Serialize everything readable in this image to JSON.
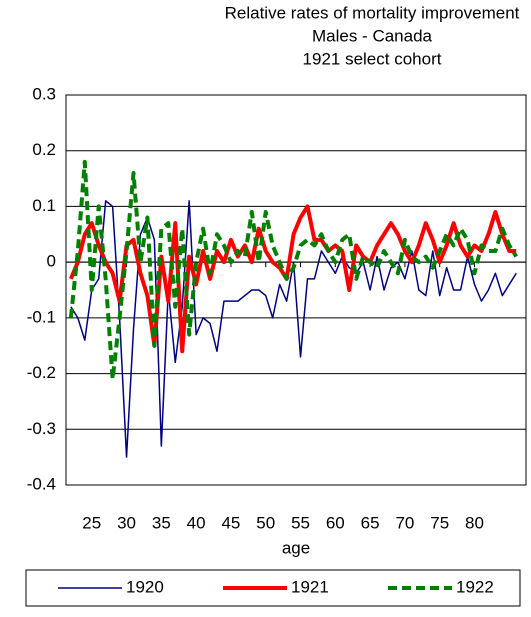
{
  "chart_data": {
    "type": "line",
    "title": [
      "Relative rates of mortality improvement",
      "Males - Canada",
      "1921 select cohort"
    ],
    "x_label": "age",
    "x": [
      22,
      23,
      24,
      25,
      26,
      27,
      28,
      29,
      30,
      31,
      32,
      33,
      34,
      35,
      36,
      37,
      38,
      39,
      40,
      41,
      42,
      43,
      44,
      45,
      46,
      47,
      48,
      49,
      50,
      51,
      52,
      53,
      54,
      55,
      56,
      57,
      58,
      59,
      60,
      61,
      62,
      63,
      64,
      65,
      66,
      67,
      68,
      69,
      70,
      71,
      72,
      73,
      74,
      75,
      76,
      77,
      78,
      79,
      80,
      81,
      82,
      83,
      84,
      85,
      86
    ],
    "xlim": [
      21.3,
      87.4
    ],
    "xticks": [
      25,
      30,
      35,
      40,
      45,
      50,
      55,
      60,
      65,
      70,
      75,
      80
    ],
    "ylim": [
      -0.4,
      0.3
    ],
    "yticks": [
      0.3,
      0.2,
      0.1,
      0,
      -0.1,
      -0.2,
      -0.3,
      -0.4
    ],
    "grid": true,
    "legend": "bottom",
    "series": [
      {
        "name": "1920",
        "color": "#000080",
        "style": "solid",
        "width": 1.5,
        "values": [
          -0.08,
          -0.1,
          -0.14,
          -0.05,
          -0.03,
          0.11,
          0.1,
          -0.1,
          -0.35,
          -0.12,
          0.05,
          0.08,
          0.04,
          -0.33,
          -0.05,
          -0.18,
          -0.08,
          0.11,
          -0.13,
          -0.1,
          -0.11,
          -0.16,
          -0.07,
          -0.07,
          -0.07,
          -0.06,
          -0.05,
          -0.05,
          -0.06,
          -0.1,
          -0.04,
          -0.07,
          0.0,
          -0.17,
          -0.03,
          -0.03,
          0.02,
          0.0,
          -0.02,
          0.01,
          -0.01,
          -0.02,
          0.0,
          -0.05,
          0.01,
          -0.05,
          -0.01,
          0.0,
          -0.03,
          0.02,
          -0.05,
          -0.06,
          0.02,
          -0.06,
          -0.01,
          -0.05,
          -0.05,
          0.01,
          -0.04,
          -0.07,
          -0.05,
          -0.02,
          -0.06,
          -0.04,
          -0.02
        ]
      },
      {
        "name": "1921",
        "color": "#ff0000",
        "style": "solid",
        "width": 4,
        "values": [
          -0.03,
          0.0,
          0.05,
          0.07,
          0.03,
          0.0,
          -0.02,
          -0.07,
          0.03,
          0.04,
          -0.02,
          -0.06,
          -0.15,
          0.01,
          -0.07,
          0.07,
          -0.16,
          0.01,
          -0.04,
          0.02,
          -0.03,
          0.02,
          0.0,
          0.04,
          0.01,
          0.03,
          0.0,
          0.06,
          0.02,
          0.0,
          -0.01,
          -0.03,
          0.05,
          0.08,
          0.1,
          0.04,
          0.04,
          0.02,
          0.03,
          0.02,
          -0.05,
          0.03,
          0.01,
          0.0,
          0.03,
          0.05,
          0.07,
          0.05,
          0.02,
          0.0,
          0.03,
          0.07,
          0.04,
          0.0,
          0.03,
          0.07,
          0.03,
          0.01,
          0.03,
          0.02,
          0.05,
          0.09,
          0.05,
          0.02,
          0.02
        ]
      },
      {
        "name": "1922",
        "color": "#008000",
        "style": "dashed",
        "width": 4,
        "values": [
          -0.1,
          0.02,
          0.18,
          -0.05,
          0.1,
          -0.03,
          -0.21,
          -0.1,
          0.02,
          0.16,
          0.0,
          0.08,
          -0.15,
          0.06,
          0.07,
          -0.08,
          0.06,
          -0.13,
          0.0,
          0.06,
          -0.02,
          0.05,
          0.03,
          0.0,
          0.02,
          0.01,
          0.09,
          0.0,
          0.09,
          0.03,
          0.0,
          -0.03,
          -0.01,
          0.03,
          0.04,
          0.03,
          0.05,
          0.02,
          0.0,
          0.04,
          0.05,
          -0.03,
          0.01,
          0.0,
          -0.01,
          0.02,
          0.0,
          -0.02,
          0.04,
          0.01,
          0.0,
          0.01,
          -0.01,
          0.02,
          0.05,
          0.03,
          0.06,
          0.04,
          -0.02,
          0.03,
          0.02,
          0.02,
          0.06,
          0.03,
          0.01
        ]
      }
    ]
  }
}
